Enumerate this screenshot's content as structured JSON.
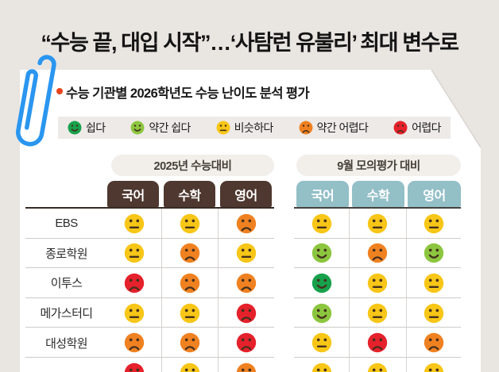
{
  "title": "“수능 끝, 대입 시작”…‘사탐런 유불리’ 최대 변수로",
  "card": {
    "subtitle": "수능 기관별 2026학년도 수능 난이도 분석 평가",
    "legend": [
      {
        "label": "쉽다",
        "level": "easy"
      },
      {
        "label": "약간 쉽다",
        "level": "slightly_easy"
      },
      {
        "label": "비슷하다",
        "level": "similar"
      },
      {
        "label": "약간 어렵다",
        "level": "slightly_hard"
      },
      {
        "label": "어렵다",
        "level": "hard"
      }
    ],
    "levels": {
      "easy": {
        "label": "쉽다",
        "color": "#18a14c",
        "mouth": "smile"
      },
      "slightly_easy": {
        "label": "약간 쉽다",
        "color": "#8cc63f",
        "mouth": "smile"
      },
      "similar": {
        "label": "비슷하다",
        "color": "#f7c617",
        "mouth": "flat"
      },
      "slightly_hard": {
        "label": "약간 어렵다",
        "color": "#f08121",
        "mouth": "frown"
      },
      "hard": {
        "label": "어렵다",
        "color": "#e5212b",
        "mouth": "frown"
      }
    },
    "groups": [
      {
        "label": "2025년 수능대비",
        "theme_color": "#4e382f",
        "columns": [
          "국어",
          "수학",
          "영어"
        ]
      },
      {
        "label": "9월 모의평가 대비",
        "theme_color": "#93bfc7",
        "columns": [
          "국어",
          "수학",
          "영어"
        ]
      }
    ],
    "rows": [
      {
        "label": "EBS",
        "vs_2025": [
          "similar",
          "similar",
          "slightly_hard"
        ],
        "vs_sept": [
          "similar",
          "similar",
          "similar"
        ]
      },
      {
        "label": "종로학원",
        "vs_2025": [
          "similar",
          "slightly_hard",
          "similar"
        ],
        "vs_sept": [
          "slightly_easy",
          "slightly_hard",
          "slightly_easy"
        ]
      },
      {
        "label": "이투스",
        "vs_2025": [
          "hard",
          "slightly_hard",
          "slightly_hard"
        ],
        "vs_sept": [
          "easy",
          "similar",
          "similar"
        ]
      },
      {
        "label": "메가스터디",
        "vs_2025": [
          "similar",
          "similar",
          "hard"
        ],
        "vs_sept": [
          "slightly_easy",
          "similar",
          "similar"
        ]
      },
      {
        "label": "대성학원",
        "vs_2025": [
          "slightly_hard",
          "slightly_hard",
          "hard"
        ],
        "vs_sept": [
          "similar",
          "hard",
          "slightly_hard"
        ]
      },
      {
        "label": "",
        "vs_2025": [
          "hard",
          "similar",
          "slightly_hard"
        ],
        "vs_sept": [
          "similar",
          "similar",
          "similar"
        ]
      }
    ]
  },
  "colors": {
    "background": "#e9e5e1",
    "card": "#ffffff",
    "paperclip": "#2a96f0",
    "bullet": "#e8431c",
    "legend_bg": "#edeae7",
    "pill_bg": "#f2efeb",
    "brown_tab": "#4e382f",
    "teal_tab": "#93bfc7",
    "rule_dark": "#372b24",
    "grid_light": "#d8d4d1"
  },
  "chart_data": {
    "type": "table",
    "title": "수능 기관별 2026학년도 수능 난이도 분석 평가",
    "column_groups": [
      "2025년 수능대비",
      "9월 모의평가 대비"
    ],
    "columns": [
      "국어",
      "수학",
      "영어",
      "국어",
      "수학",
      "영어"
    ],
    "scale": [
      "쉽다",
      "약간 쉽다",
      "비슷하다",
      "약간 어렵다",
      "어렵다"
    ],
    "rows": [
      {
        "institution": "EBS",
        "values": [
          "비슷하다",
          "비슷하다",
          "약간 어렵다",
          "비슷하다",
          "비슷하다",
          "비슷하다"
        ]
      },
      {
        "institution": "종로학원",
        "values": [
          "비슷하다",
          "약간 어렵다",
          "비슷하다",
          "약간 쉽다",
          "약간 어렵다",
          "약간 쉽다"
        ]
      },
      {
        "institution": "이투스",
        "values": [
          "어렵다",
          "약간 어렵다",
          "약간 어렵다",
          "쉽다",
          "비슷하다",
          "비슷하다"
        ]
      },
      {
        "institution": "메가스터디",
        "values": [
          "비슷하다",
          "비슷하다",
          "어렵다",
          "약간 쉽다",
          "비슷하다",
          "비슷하다"
        ]
      },
      {
        "institution": "대성학원",
        "values": [
          "약간 어렵다",
          "약간 어렵다",
          "어렵다",
          "비슷하다",
          "어렵다",
          "약간 어렵다"
        ]
      },
      {
        "institution": "",
        "values": [
          "어렵다",
          "비슷하다",
          "약간 어렵다",
          "비슷하다",
          "비슷하다",
          "비슷하다"
        ]
      }
    ]
  }
}
